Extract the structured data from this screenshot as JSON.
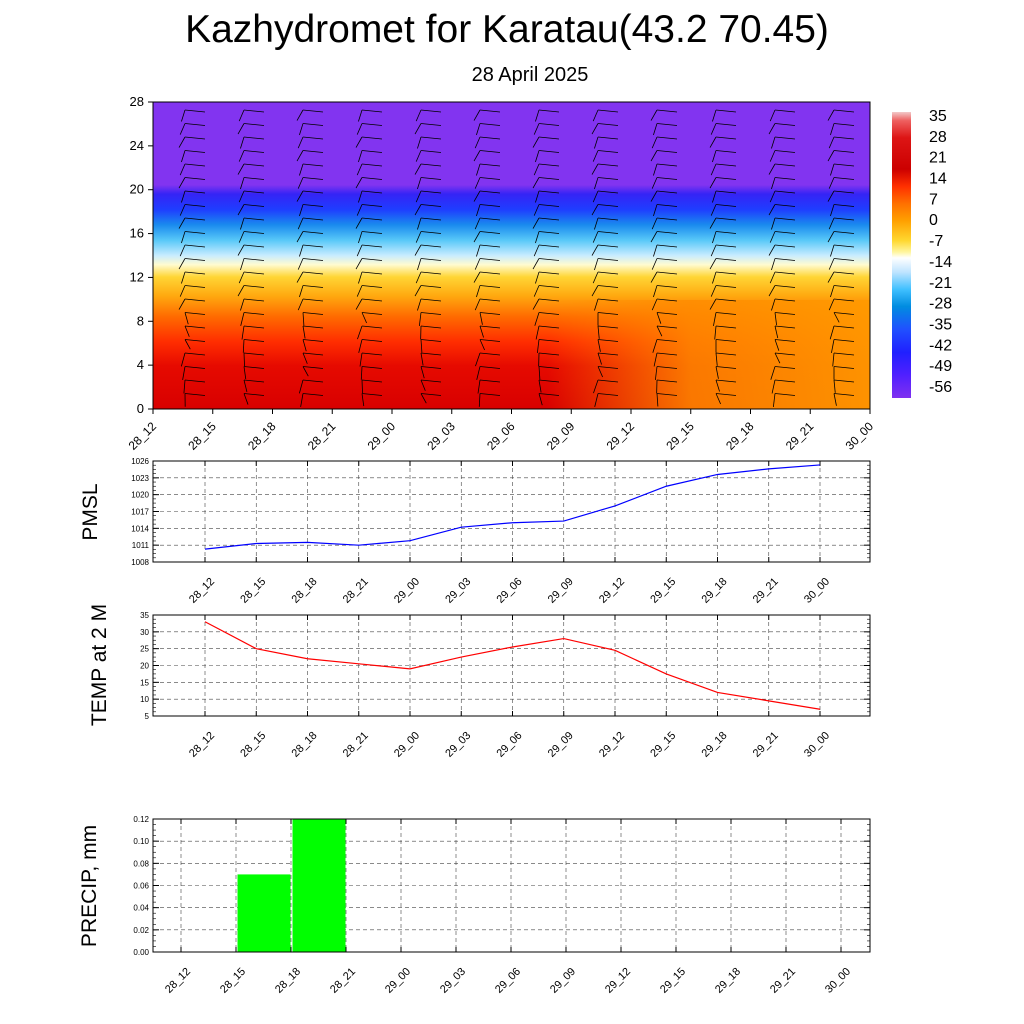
{
  "header": {
    "title": "Kazhydromet for Karatau(43.2 70.45)",
    "subtitle": "28 April 2025"
  },
  "time_labels": [
    "28_12",
    "28_15",
    "28_18",
    "28_21",
    "29_00",
    "29_03",
    "29_06",
    "29_09",
    "29_12",
    "29_15",
    "29_18",
    "29_21",
    "30_00"
  ],
  "colors": {
    "pmsl_line": "#0000ff",
    "temp_line": "#ff0000",
    "precip_bar": "#00ff00"
  },
  "chart_data": [
    {
      "type": "heatmap",
      "name": "",
      "x": [
        "28_12",
        "28_15",
        "28_18",
        "28_21",
        "29_00",
        "29_03",
        "29_06",
        "29_09",
        "29_12",
        "29_15",
        "29_18",
        "29_21",
        "30_00"
      ],
      "ylim": [
        0,
        28
      ],
      "yticks": [
        0,
        4,
        8,
        12,
        16,
        20,
        24,
        28
      ],
      "colorbar": {
        "ticks": [
          35,
          28,
          21,
          14,
          7,
          0,
          -7,
          -14,
          -21,
          -28,
          -35,
          -42,
          -49,
          -56
        ],
        "range": [
          -60,
          37
        ]
      },
      "overlay": "wind barbs",
      "grid": false
    },
    {
      "type": "line",
      "ylabel": "PMSL",
      "x": [
        "28_12",
        "28_15",
        "28_18",
        "28_21",
        "29_00",
        "29_03",
        "29_06",
        "29_09",
        "29_12",
        "29_15",
        "29_18",
        "29_21",
        "30_00"
      ],
      "values": [
        1010.3,
        1011.3,
        1011.5,
        1011.0,
        1011.8,
        1014.2,
        1015.0,
        1015.3,
        1018.0,
        1021.5,
        1023.6,
        1024.6,
        1025.3
      ],
      "ylim": [
        1008,
        1026
      ],
      "yticks": [
        1008,
        1011,
        1014,
        1017,
        1020,
        1023,
        1026
      ],
      "grid": true
    },
    {
      "type": "line",
      "ylabel": "TEMP at 2 M",
      "x": [
        "28_12",
        "28_15",
        "28_18",
        "28_21",
        "29_00",
        "29_03",
        "29_06",
        "29_09",
        "29_12",
        "29_15",
        "29_18",
        "29_21",
        "30_00"
      ],
      "values": [
        33,
        25,
        22,
        20.5,
        19,
        22.5,
        25.5,
        28,
        24.5,
        17.5,
        12,
        9.5,
        7
      ],
      "ylim": [
        5,
        35
      ],
      "yticks": [
        5,
        10,
        15,
        20,
        25,
        30,
        35
      ],
      "grid": true
    },
    {
      "type": "bar",
      "ylabel": "PRECIP, mm",
      "categories": [
        "28_12",
        "28_15",
        "28_18",
        "28_21",
        "29_00",
        "29_03",
        "29_06",
        "29_09",
        "29_12",
        "29_15",
        "29_18",
        "29_21",
        "30_00"
      ],
      "values": [
        0,
        0.07,
        0.12,
        0,
        0,
        0,
        0,
        0,
        0,
        0,
        0,
        0,
        0
      ],
      "ylim": [
        0,
        0.12
      ],
      "yticks": [
        "0.00",
        "0.02",
        "0.04",
        "0.06",
        "0.08",
        "0.10",
        "0.12"
      ],
      "grid": true
    }
  ]
}
